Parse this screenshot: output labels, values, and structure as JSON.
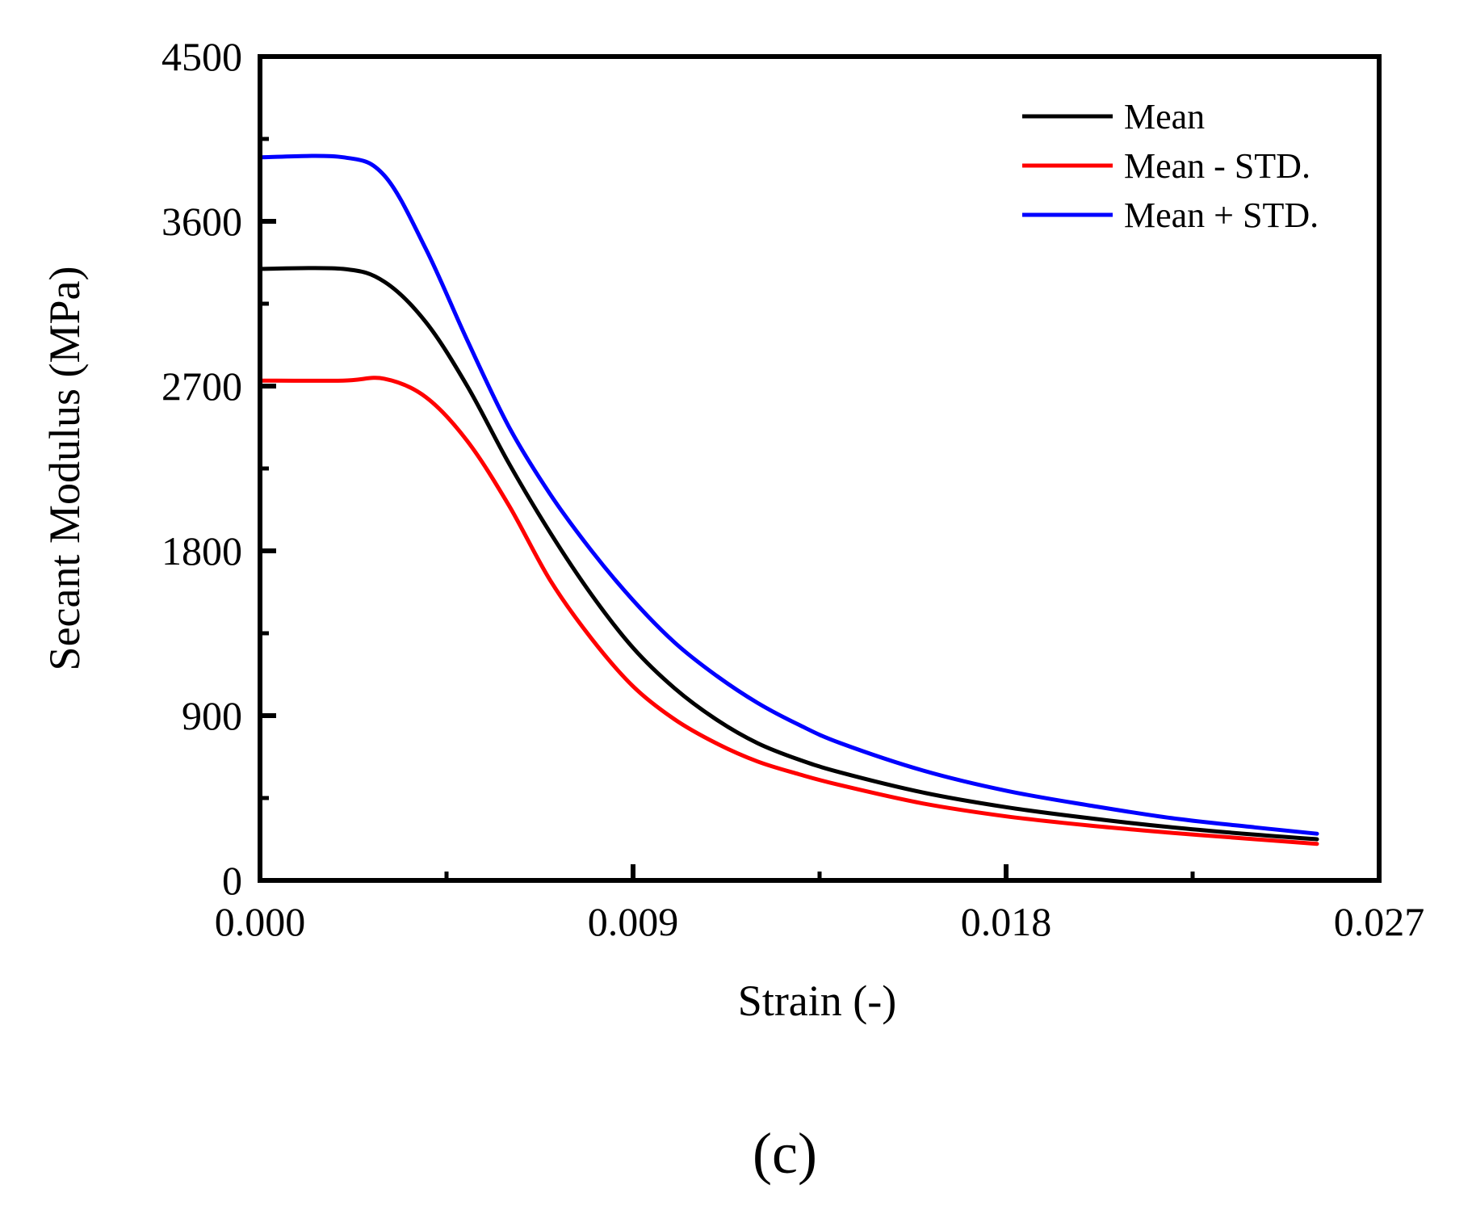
{
  "chart_data": {
    "type": "line",
    "title": "",
    "xlabel": "Strain (-)",
    "ylabel": "Secant Modulus (MPa)",
    "xlim": [
      0,
      0.027
    ],
    "ylim": [
      0,
      4500
    ],
    "xticks": [
      "0.000",
      "0.009",
      "0.018",
      "0.027"
    ],
    "xtick_values": [
      0,
      0.009,
      0.018,
      0.027
    ],
    "yticks": [
      "0",
      "900",
      "1800",
      "2700",
      "3600",
      "4500"
    ],
    "ytick_values": [
      0,
      900,
      1800,
      2700,
      3600,
      4500
    ],
    "grid": false,
    "legend_position": "top-right",
    "panel_label": "(c)",
    "series": [
      {
        "name": "Mean",
        "color": "#000000",
        "x": [
          0,
          0.002,
          0.003,
          0.004,
          0.005,
          0.006,
          0.007,
          0.008,
          0.009,
          0.01,
          0.011,
          0.012,
          0.013,
          0.014,
          0.016,
          0.018,
          0.02,
          0.022,
          0.024,
          0.0255
        ],
        "y": [
          3340,
          3340,
          3270,
          3050,
          2700,
          2280,
          1900,
          1560,
          1270,
          1050,
          880,
          750,
          660,
          590,
          480,
          400,
          340,
          290,
          250,
          225
        ]
      },
      {
        "name": "Mean - STD.",
        "color": "#ff0000",
        "x": [
          0,
          0.002,
          0.003,
          0.004,
          0.005,
          0.006,
          0.007,
          0.008,
          0.009,
          0.01,
          0.011,
          0.012,
          0.013,
          0.014,
          0.016,
          0.018,
          0.02,
          0.022,
          0.024,
          0.0255
        ],
        "y": [
          2730,
          2730,
          2740,
          2640,
          2400,
          2050,
          1640,
          1320,
          1060,
          880,
          750,
          650,
          580,
          520,
          420,
          350,
          300,
          260,
          225,
          200
        ]
      },
      {
        "name": "Mean + STD.",
        "color": "#0000ff",
        "x": [
          0,
          0.002,
          0.003,
          0.004,
          0.005,
          0.006,
          0.007,
          0.008,
          0.009,
          0.01,
          0.011,
          0.012,
          0.013,
          0.014,
          0.016,
          0.018,
          0.02,
          0.022,
          0.024,
          0.0255
        ],
        "y": [
          3950,
          3950,
          3850,
          3450,
          2950,
          2480,
          2110,
          1800,
          1530,
          1300,
          1120,
          970,
          850,
          750,
          600,
          490,
          410,
          340,
          290,
          255
        ]
      }
    ]
  }
}
